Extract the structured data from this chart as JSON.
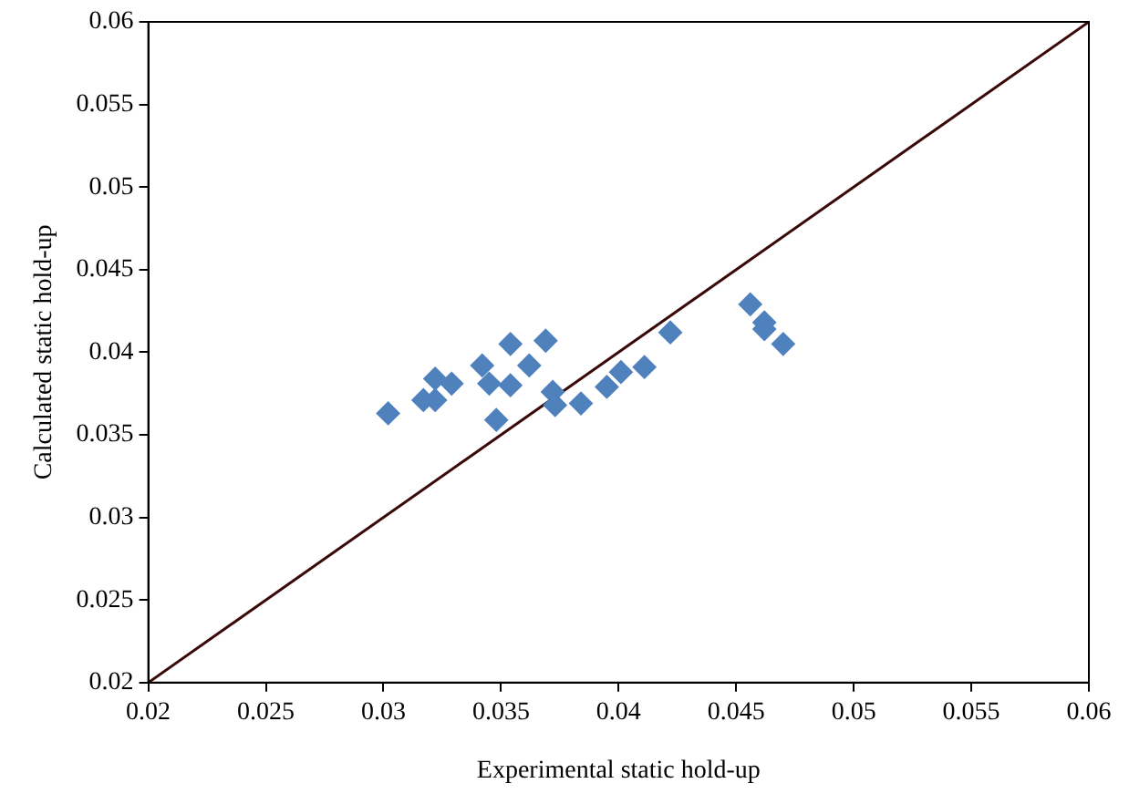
{
  "chart_data": {
    "type": "scatter",
    "xlabel": "Experimental static hold-up",
    "ylabel": "Calculated static hold-up",
    "xlim": [
      0.02,
      0.06
    ],
    "ylim": [
      0.02,
      0.06
    ],
    "xticks": [
      {
        "value": 0.02,
        "label": "0.02"
      },
      {
        "value": 0.025,
        "label": "0.025"
      },
      {
        "value": 0.03,
        "label": "0.03"
      },
      {
        "value": 0.035,
        "label": "0.035"
      },
      {
        "value": 0.04,
        "label": "0.04"
      },
      {
        "value": 0.045,
        "label": "0.045"
      },
      {
        "value": 0.05,
        "label": "0.05"
      },
      {
        "value": 0.055,
        "label": "0.055"
      },
      {
        "value": 0.06,
        "label": "0.06"
      }
    ],
    "yticks": [
      {
        "value": 0.02,
        "label": "0.02"
      },
      {
        "value": 0.025,
        "label": "0.025"
      },
      {
        "value": 0.03,
        "label": "0.03"
      },
      {
        "value": 0.035,
        "label": "0.035"
      },
      {
        "value": 0.04,
        "label": "0.04"
      },
      {
        "value": 0.045,
        "label": "0.045"
      },
      {
        "value": 0.05,
        "label": "0.05"
      },
      {
        "value": 0.055,
        "label": "0.055"
      },
      {
        "value": 0.06,
        "label": "0.06"
      }
    ],
    "grid": false,
    "legend": false,
    "series": [
      {
        "type": "scatter",
        "marker": "diamond",
        "color": "#4f81bd",
        "x": [
          0.0302,
          0.0317,
          0.0322,
          0.0322,
          0.0329,
          0.0342,
          0.0345,
          0.0348,
          0.0354,
          0.0354,
          0.0362,
          0.0369,
          0.0372,
          0.0373,
          0.0384,
          0.0395,
          0.0401,
          0.0411,
          0.0422,
          0.0456,
          0.0462,
          0.0462,
          0.047
        ],
        "values": [
          0.0363,
          0.0371,
          0.0384,
          0.0371,
          0.0381,
          0.0392,
          0.0381,
          0.0359,
          0.0405,
          0.038,
          0.0392,
          0.0407,
          0.0376,
          0.0368,
          0.0369,
          0.0379,
          0.0388,
          0.0391,
          0.0412,
          0.0429,
          0.0418,
          0.0414,
          0.0405
        ]
      },
      {
        "type": "line",
        "marker": "none",
        "color": "#3a0a0a",
        "x": [
          0.02,
          0.06
        ],
        "values": [
          0.02,
          0.06
        ]
      }
    ]
  }
}
